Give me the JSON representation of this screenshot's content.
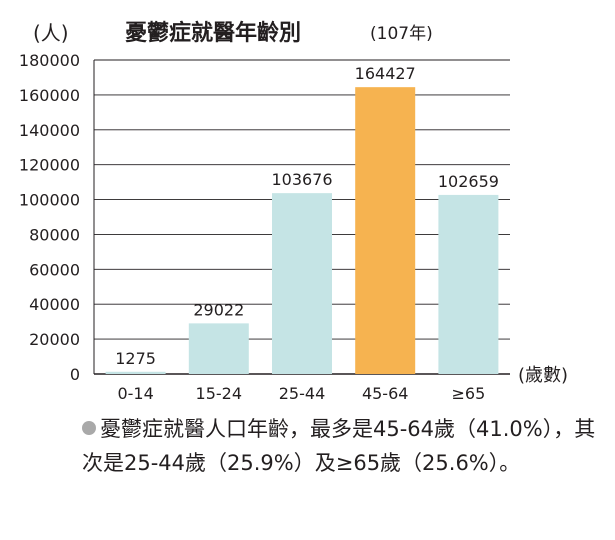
{
  "chart_data": {
    "type": "bar",
    "title": "憂鬱症就醫年齡別",
    "subtitle": "(107年)",
    "ylabel": "(人)",
    "xlabel": "(歲數)",
    "categories": [
      "0-14",
      "15-24",
      "25-44",
      "45-64",
      "≥65"
    ],
    "values": [
      1275,
      29022,
      103676,
      164427,
      102659
    ],
    "value_labels": [
      "1275",
      "29022",
      "103676",
      "164427",
      "102659"
    ],
    "ylim": [
      0,
      180000
    ],
    "yticks": [
      0,
      20000,
      40000,
      60000,
      80000,
      100000,
      120000,
      140000,
      160000,
      180000
    ],
    "ytick_labels": [
      "0",
      "20000",
      "40000",
      "60000",
      "80000",
      "100000",
      "120000",
      "140000",
      "160000",
      "180000"
    ],
    "grid": true,
    "colors": {
      "bar": "#c5e4e5",
      "highlight_bar": "#f6b350",
      "grid": "#231f20",
      "text": "#231f20"
    },
    "highlight_index": 3
  },
  "caption": {
    "bullet_color": "#a9a9a9",
    "text": "憂鬱症就醫人口年齡，最多是45-64歲（41.0%），其次是25-44歲（25.9%）及≥65歲（25.6%）。"
  }
}
